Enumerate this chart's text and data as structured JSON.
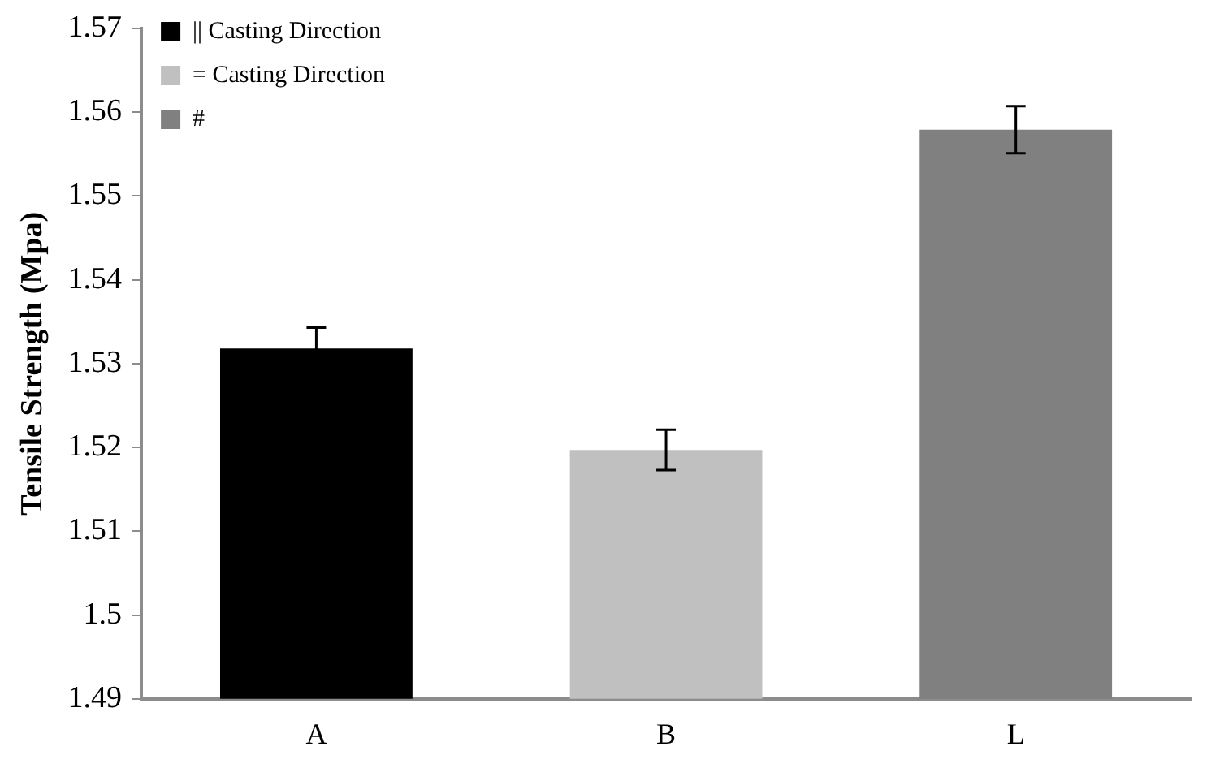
{
  "chart_data": {
    "type": "bar",
    "ylabel": "Tensile Strength (Mpa)",
    "categories": [
      "A",
      "B",
      "L"
    ],
    "series": [
      {
        "name": "|| Casting Direction",
        "color": "#000000",
        "values": [
          1.5318,
          null,
          null
        ],
        "errors": [
          0.0025,
          null,
          null
        ]
      },
      {
        "name": "= Casting Direction",
        "color": "#c0c0c0",
        "values": [
          null,
          1.5197,
          null
        ],
        "errors": [
          null,
          0.0024,
          null
        ]
      },
      {
        "name": "#",
        "color": "#808080",
        "values": [
          null,
          null,
          1.5579
        ],
        "errors": [
          null,
          null,
          0.0028
        ]
      }
    ],
    "ylim": [
      1.49,
      1.57
    ],
    "yticks": [
      1.49,
      1.5,
      1.51,
      1.52,
      1.53,
      1.54,
      1.55,
      1.56,
      1.57
    ],
    "grid": false,
    "legend": "top left"
  }
}
